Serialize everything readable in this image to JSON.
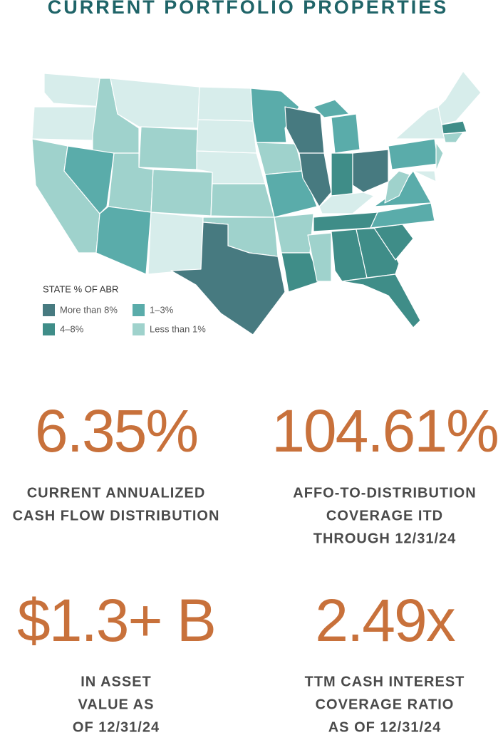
{
  "title": "CURRENT PORTFOLIO PROPERTIES",
  "legend": {
    "title": "STATE % OF ABR",
    "items": [
      {
        "label": "More than 8%",
        "color": "#477a80"
      },
      {
        "label": "4–8%",
        "color": "#3f8d88"
      },
      {
        "label": "1–3%",
        "color": "#5aacaa"
      },
      {
        "label": "Less than 1%",
        "color": "#9fd2cc"
      }
    ]
  },
  "stats": [
    {
      "value": "6.35%",
      "label": [
        "CURRENT ANNUALIZED",
        "CASH FLOW DISTRIBUTION"
      ]
    },
    {
      "value": "104.61%",
      "label": [
        "AFFO-TO-DISTRIBUTION",
        "COVERAGE ITD",
        "THROUGH 12/31/24"
      ]
    },
    {
      "value": "$1.3+ B",
      "label": [
        "IN ASSET",
        "VALUE AS",
        "OF 12/31/24"
      ]
    },
    {
      "value": "2.49x",
      "label": [
        "TTM CASH INTEREST",
        "COVERAGE RATIO",
        "AS OF 12/31/24"
      ]
    }
  ]
}
